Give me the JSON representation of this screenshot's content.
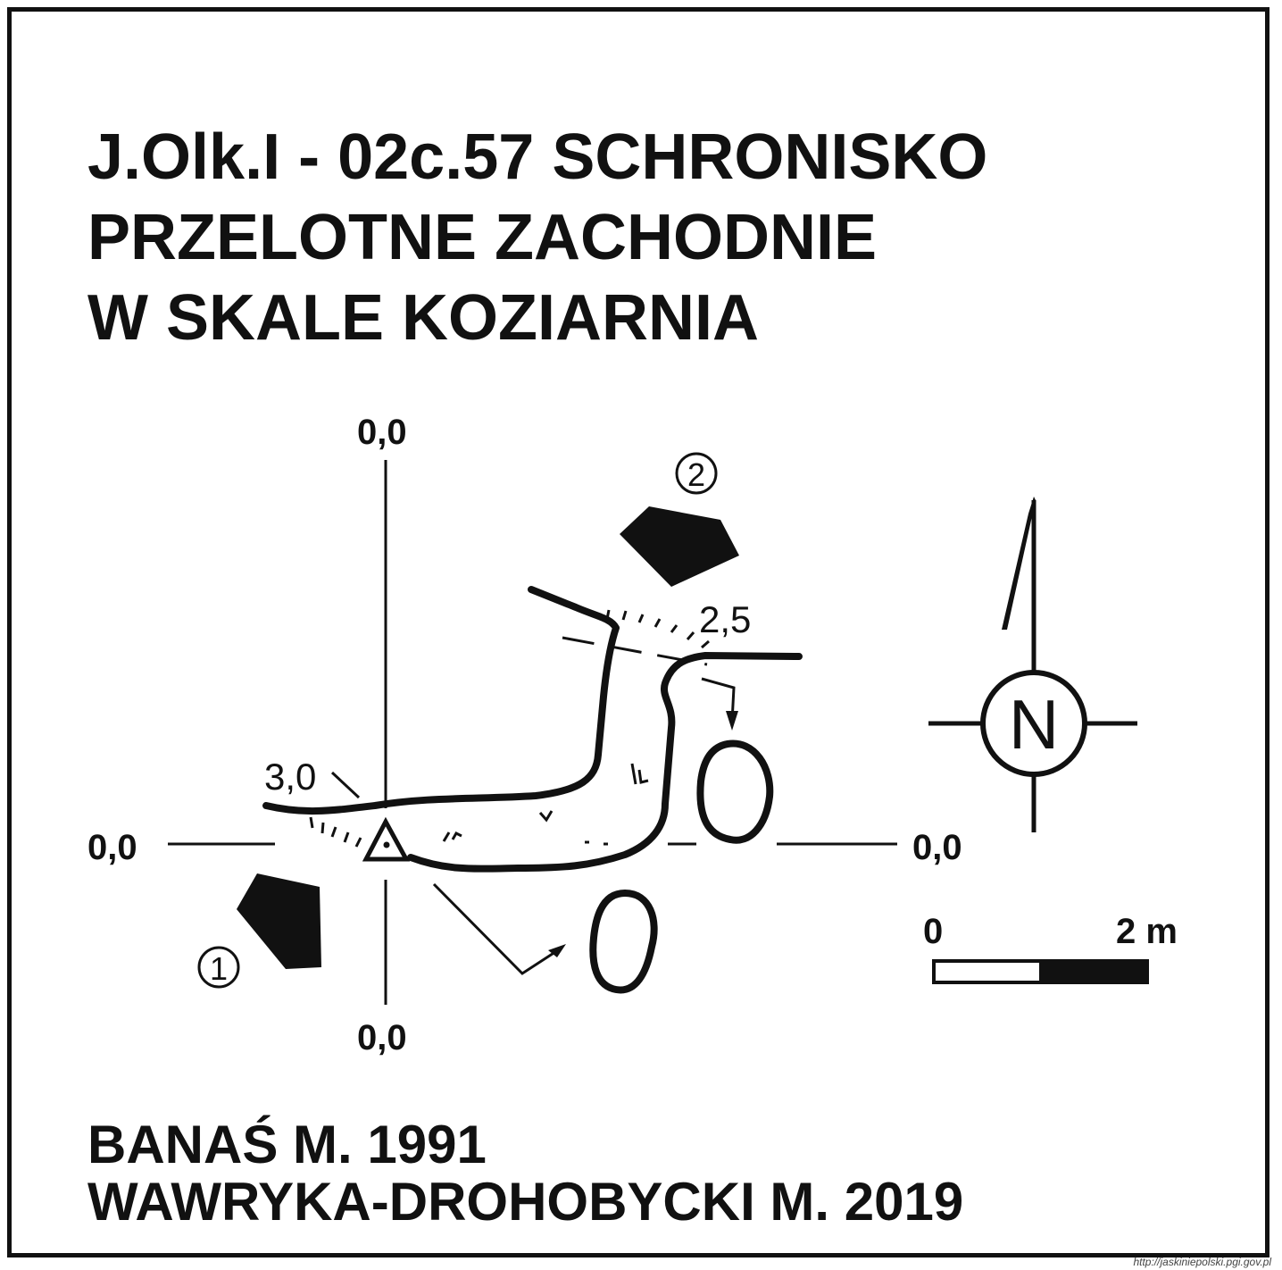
{
  "title": {
    "line1": "J.Olk.I - 02c.57  SCHRONISKO",
    "line2": "PRZELOTNE ZACHODNIE",
    "line3": "W SKALE KOZIARNIA"
  },
  "axes": {
    "top": "0,0",
    "bottom": "0,0",
    "left": "0,0",
    "right": "0,0"
  },
  "depths": {
    "west_entrance": "3,0",
    "east_entrance": "2,5"
  },
  "entrances": {
    "first": "①",
    "second": "②"
  },
  "north": {
    "letter": "N"
  },
  "scale": {
    "start": "0",
    "end": "2 m"
  },
  "authors": {
    "line1": "BANAŚ M. 1991",
    "line2": "WAWRYKA-DROHOBYCKI M. 2019"
  },
  "watermark": "http://jaskiniepolski.pgi.gov.pl",
  "colors": {
    "ink": "#111111",
    "paper": "#ffffff"
  }
}
